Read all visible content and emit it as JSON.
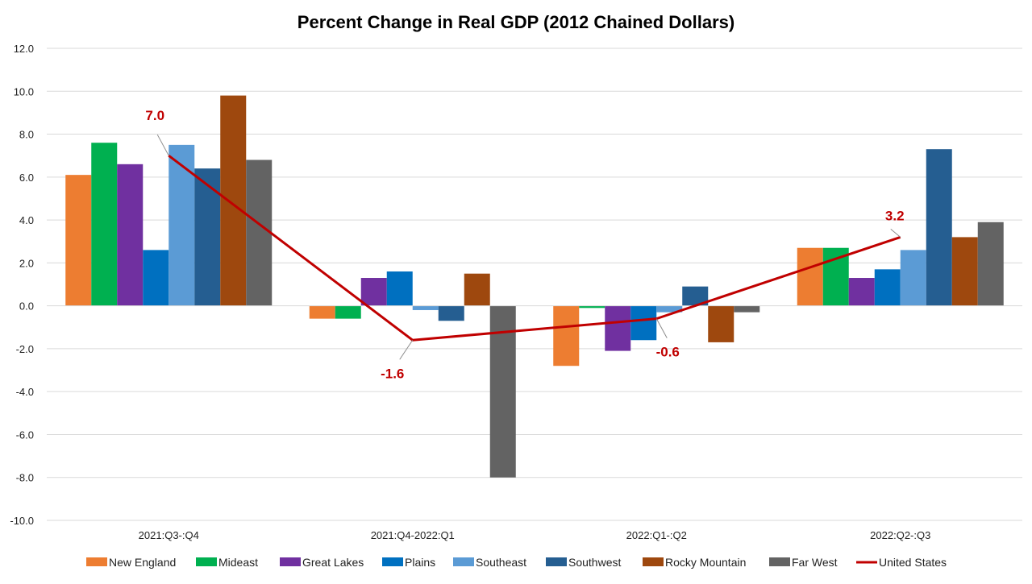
{
  "chart_data": {
    "type": "bar",
    "title": "Percent Change in Real GDP (2012 Chained Dollars)",
    "xlabel": "",
    "ylabel": "",
    "ylim": [
      -10,
      12
    ],
    "yticks": [
      12,
      10,
      8,
      6,
      4,
      2,
      0,
      -2,
      -4,
      -6,
      -8,
      -10
    ],
    "ytick_labels": [
      "12.0",
      "10.0",
      "8.0",
      "6.0",
      "4.0",
      "2.0",
      "0.0",
      "-2.0",
      "-4.0",
      "-6.0",
      "-8.0",
      "-10.0"
    ],
    "grid": true,
    "legend_position": "bottom",
    "categories": [
      "2021:Q3-:Q4",
      "2021:Q4-2022:Q1",
      "2022:Q1-:Q2",
      "2022:Q2-:Q3"
    ],
    "series": [
      {
        "name": "New England",
        "color": "#ED7D31",
        "values": [
          6.1,
          -0.6,
          -2.8,
          2.7
        ]
      },
      {
        "name": "Mideast",
        "color": "#00B050",
        "values": [
          7.6,
          -0.6,
          -0.1,
          2.7
        ]
      },
      {
        "name": "Great Lakes",
        "color": "#7030A0",
        "values": [
          6.6,
          1.3,
          -2.1,
          1.3
        ]
      },
      {
        "name": "Plains",
        "color": "#0070C0",
        "values": [
          2.6,
          1.6,
          -1.6,
          1.7
        ]
      },
      {
        "name": "Southeast",
        "color": "#5B9BD5",
        "values": [
          7.5,
          -0.2,
          -0.3,
          2.6
        ]
      },
      {
        "name": "Southwest",
        "color": "#255E91",
        "values": [
          6.4,
          -0.7,
          0.9,
          7.3
        ]
      },
      {
        "name": "Rocky Mountain",
        "color": "#9E480E",
        "values": [
          9.8,
          1.5,
          -1.7,
          3.2
        ]
      },
      {
        "name": "Far West",
        "color": "#636363",
        "values": [
          6.8,
          -8.0,
          -0.3,
          3.9
        ]
      }
    ],
    "line_series": {
      "name": "United States",
      "color": "#C00000",
      "values": [
        7.0,
        -1.6,
        -0.6,
        3.2
      ],
      "data_labels": [
        "7.0",
        "-1.6",
        "-0.6",
        "3.2"
      ],
      "label_placement": [
        "above",
        "below",
        "below",
        "above"
      ]
    }
  }
}
